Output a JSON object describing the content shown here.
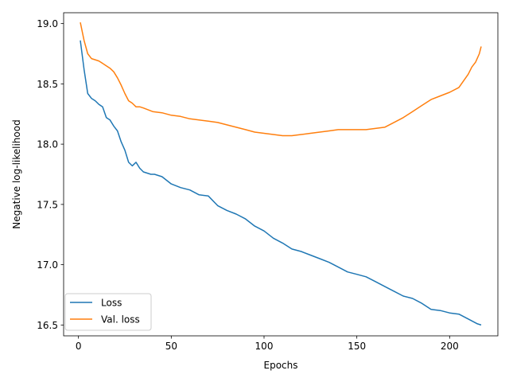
{
  "chart_data": {
    "type": "line",
    "title": "",
    "xlabel": "Epochs",
    "ylabel": "Negative log-likelihood",
    "xlim": [
      -8,
      226
    ],
    "ylim": [
      16.41,
      19.09
    ],
    "xticks": [
      0,
      50,
      100,
      150,
      200
    ],
    "yticks": [
      16.5,
      17.0,
      17.5,
      18.0,
      18.5,
      19.0
    ],
    "ytick_labels": [
      "16.5",
      "17.0",
      "17.5",
      "18.0",
      "18.5",
      "19.0"
    ],
    "grid": false,
    "legend": "bottom-left",
    "series": [
      {
        "name": "Loss",
        "color": "#1f77b4",
        "x": [
          1,
          3,
          5,
          7,
          9,
          11,
          13,
          15,
          17,
          19,
          21,
          23,
          25,
          27,
          29,
          31,
          33,
          35,
          37,
          39,
          41,
          45,
          50,
          55,
          60,
          65,
          70,
          75,
          80,
          85,
          90,
          95,
          100,
          105,
          110,
          115,
          120,
          125,
          130,
          135,
          140,
          145,
          150,
          155,
          160,
          165,
          170,
          175,
          180,
          185,
          190,
          195,
          200,
          205,
          210,
          215,
          217
        ],
        "y": [
          18.86,
          18.62,
          18.42,
          18.38,
          18.36,
          18.33,
          18.31,
          18.22,
          18.2,
          18.15,
          18.11,
          18.02,
          17.95,
          17.85,
          17.82,
          17.85,
          17.8,
          17.77,
          17.76,
          17.75,
          17.75,
          17.73,
          17.67,
          17.64,
          17.62,
          17.58,
          17.57,
          17.49,
          17.45,
          17.42,
          17.38,
          17.32,
          17.28,
          17.22,
          17.18,
          17.13,
          17.11,
          17.08,
          17.05,
          17.02,
          16.98,
          16.94,
          16.92,
          16.9,
          16.86,
          16.82,
          16.78,
          16.74,
          16.72,
          16.68,
          16.63,
          16.62,
          16.6,
          16.59,
          16.55,
          16.51,
          16.5
        ]
      },
      {
        "name": "Val. loss",
        "color": "#ff7f0e",
        "x": [
          1,
          3,
          5,
          7,
          9,
          11,
          13,
          15,
          17,
          19,
          21,
          23,
          25,
          27,
          29,
          31,
          33,
          35,
          40,
          45,
          50,
          55,
          60,
          65,
          70,
          75,
          80,
          85,
          90,
          95,
          100,
          105,
          110,
          115,
          120,
          125,
          130,
          135,
          140,
          145,
          150,
          155,
          160,
          165,
          170,
          175,
          180,
          185,
          190,
          195,
          200,
          205,
          210,
          212,
          214,
          216,
          217
        ],
        "y": [
          19.01,
          18.86,
          18.75,
          18.71,
          18.7,
          18.69,
          18.67,
          18.65,
          18.63,
          18.6,
          18.55,
          18.49,
          18.42,
          18.36,
          18.34,
          18.31,
          18.31,
          18.3,
          18.27,
          18.26,
          18.24,
          18.23,
          18.21,
          18.2,
          18.19,
          18.18,
          18.16,
          18.14,
          18.12,
          18.1,
          18.09,
          18.08,
          18.07,
          18.07,
          18.08,
          18.09,
          18.1,
          18.11,
          18.12,
          18.12,
          18.12,
          18.12,
          18.13,
          18.14,
          18.18,
          18.22,
          18.27,
          18.32,
          18.37,
          18.4,
          18.43,
          18.47,
          18.58,
          18.64,
          18.68,
          18.75,
          18.81
        ]
      }
    ]
  }
}
